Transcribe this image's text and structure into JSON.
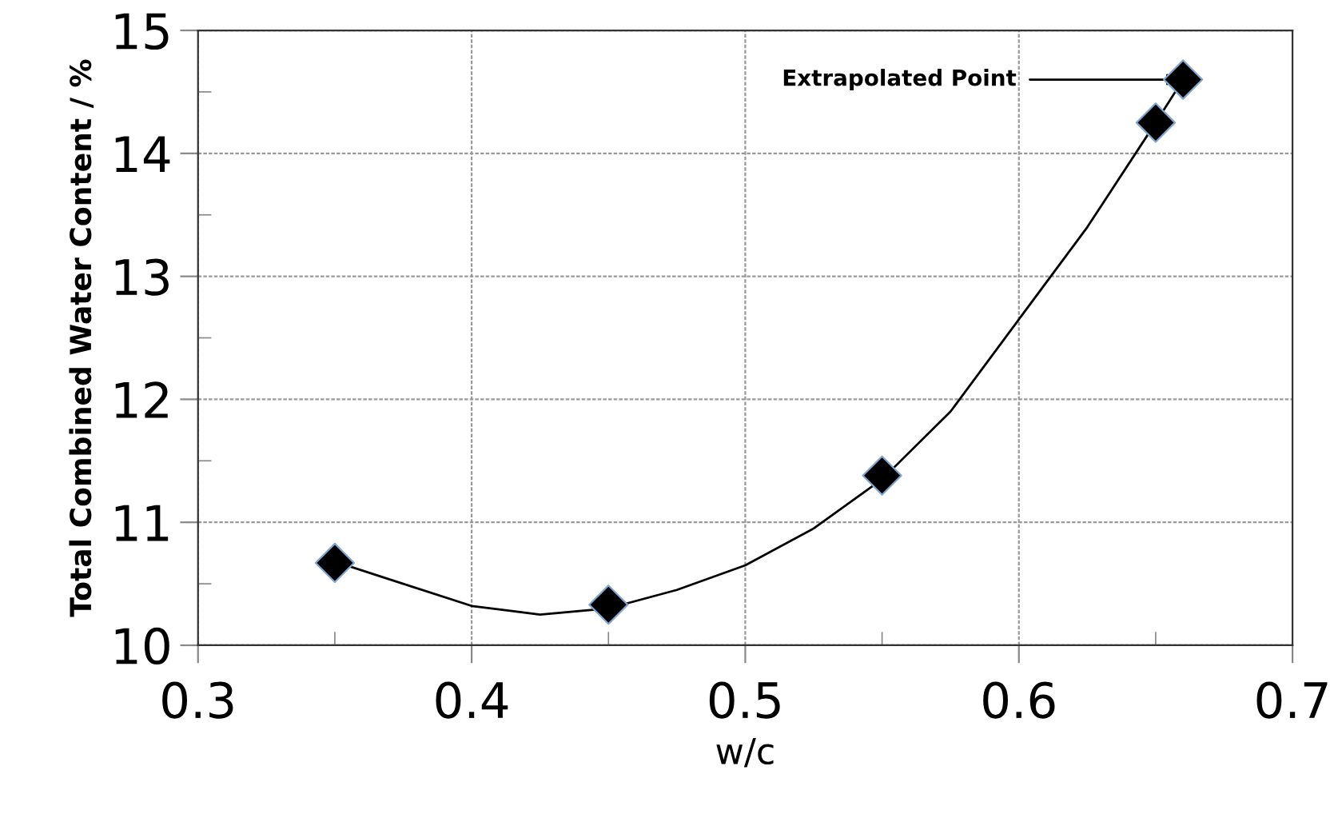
{
  "chart_data": {
    "type": "scatter",
    "xlabel": "w/c",
    "ylabel": "Total Combined Water Content / %",
    "series": [
      {
        "color": "#000000",
        "marker": "diamond",
        "x": [
          0.35,
          0.45,
          0.55,
          0.65,
          0.66
        ],
        "values": [
          10.67,
          10.33,
          11.38,
          14.25,
          14.6
        ]
      },
      {
        "type": "line",
        "color": "#000000",
        "marker": "none",
        "x": [
          0.35,
          0.375,
          0.4,
          0.425,
          0.45,
          0.475,
          0.5,
          0.525,
          0.55,
          0.575,
          0.6,
          0.625,
          0.65,
          0.66
        ],
        "values": [
          10.68,
          10.5,
          10.32,
          10.25,
          10.3,
          10.45,
          10.65,
          10.95,
          11.35,
          11.9,
          12.65,
          13.4,
          14.25,
          14.6
        ]
      }
    ],
    "annotations": [
      {
        "text": "Extrapolated Point",
        "x": 0.66,
        "y": 14.6
      }
    ],
    "xlim": [
      0.3,
      0.7
    ],
    "ylim": [
      10,
      15
    ],
    "xticks": [
      0.3,
      {
        "value": 0.35,
        "label": null
      },
      0.4,
      {
        "value": 0.45,
        "label": null
      },
      0.5,
      {
        "value": 0.55,
        "label": null
      },
      0.6,
      {
        "value": 0.65,
        "label": null
      },
      0.7
    ],
    "yticks": [
      10,
      {
        "value": 10.5,
        "label": null
      },
      11,
      {
        "value": 11.5,
        "label": null
      },
      12,
      {
        "value": 12.5,
        "label": null
      },
      13,
      {
        "value": 13.5,
        "label": null
      },
      14,
      {
        "value": 14.5,
        "label": null
      },
      15
    ],
    "grid": true,
    "legend": false
  }
}
